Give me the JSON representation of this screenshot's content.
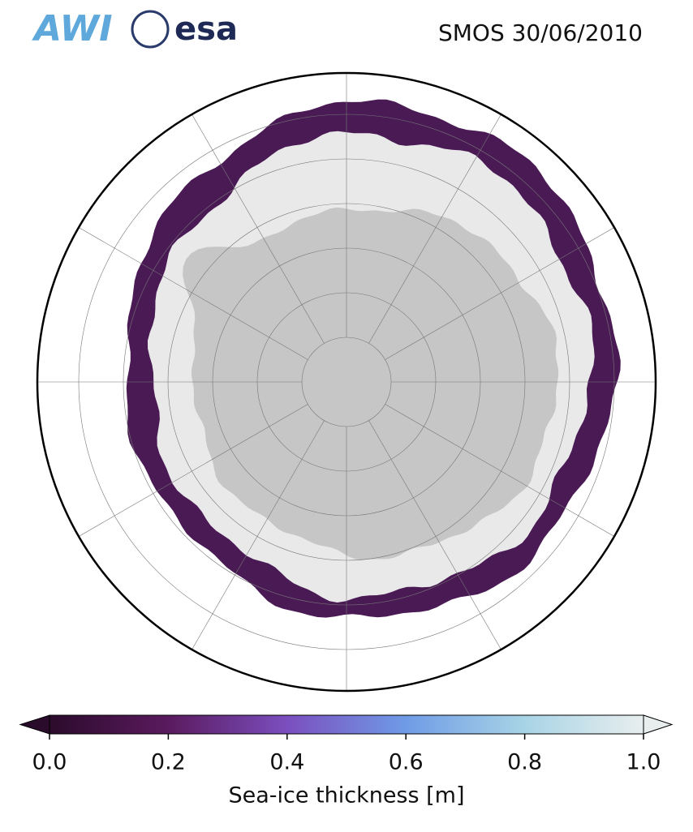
{
  "header": {
    "logos": [
      "AWI",
      "esa"
    ],
    "title": "SMOS 30/06/2010"
  },
  "colorbar": {
    "label": "Sea-ice thickness [m]",
    "lim": [
      0,
      1
    ],
    "ticks": [
      {
        "value": 0,
        "label": "0.0"
      },
      0.2,
      0.4,
      0.6,
      0.8,
      {
        "value": 1,
        "label": "1.0"
      }
    ],
    "colors": [
      "#2b0b2c",
      "#5a1a5e",
      "#7b4fbf",
      "#6f9be6",
      "#a8d4e6",
      "#e8eeee"
    ]
  }
}
